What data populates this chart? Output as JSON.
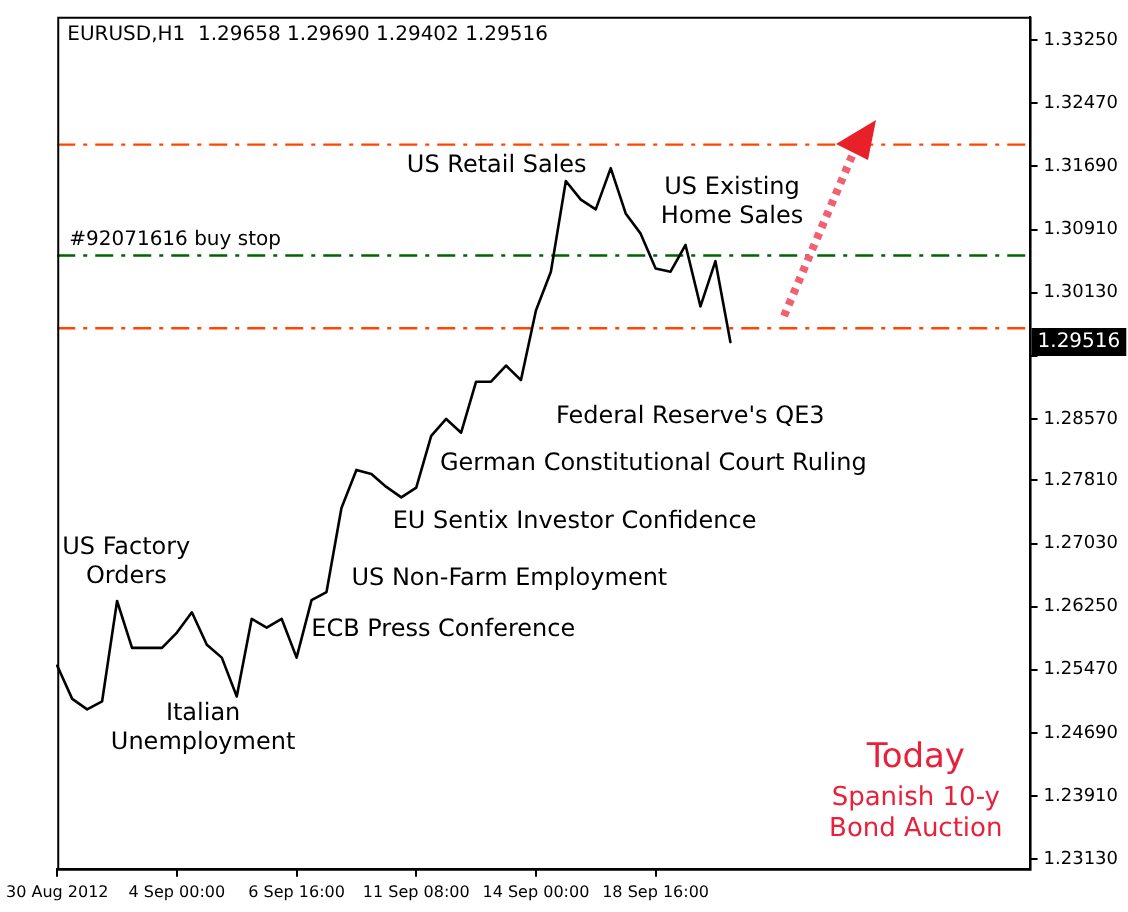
{
  "chart_data": {
    "type": "line",
    "title": "EURUSD,H1  1.29658 1.29690 1.29402 1.29516",
    "categories": [
      "30 Aug 2012",
      null,
      null,
      null,
      null,
      null,
      null,
      null,
      "4 Sep 00:00",
      null,
      null,
      null,
      null,
      null,
      null,
      null,
      "6 Sep 16:00",
      null,
      null,
      null,
      null,
      null,
      null,
      null,
      "11 Sep 08:00",
      null,
      null,
      null,
      null,
      null,
      null,
      null,
      "14 Sep 00:00",
      null,
      null,
      null,
      null,
      null,
      null,
      null,
      "18 Sep 16:00",
      null,
      null,
      null,
      null,
      null,
      null,
      null,
      null,
      null,
      null,
      null,
      null,
      null,
      null,
      null,
      null,
      null,
      null,
      null,
      null,
      null,
      null,
      null,
      null,
      null
    ],
    "series": [
      {
        "color": "#000000",
        "values": [
          1.2552,
          1.2511,
          1.2498,
          1.2508,
          1.2632,
          1.2574,
          1.2574,
          1.2574,
          1.2593,
          1.2618,
          1.2578,
          1.2562,
          1.2514,
          1.261,
          1.2599,
          1.261,
          1.2562,
          1.2633,
          1.2643,
          1.2747,
          1.2794,
          1.2789,
          1.2773,
          1.276,
          1.2772,
          1.2836,
          1.2857,
          1.284,
          1.2903,
          1.2903,
          1.2923,
          1.2905,
          1.2991,
          1.3039,
          1.3151,
          1.3128,
          1.3116,
          1.3167,
          1.3111,
          1.3086,
          1.3043,
          1.3039,
          1.3072,
          1.2996,
          1.3052,
          1.2952,
          null,
          null,
          null,
          null,
          null,
          null,
          null,
          null,
          null,
          null,
          null,
          null,
          null,
          null,
          null,
          null,
          null,
          null,
          null,
          null
        ]
      }
    ],
    "ylim": [
      1.2301,
      1.3354
    ],
    "yticks": [
      {
        "value": 1.2313,
        "label": "1.23130"
      },
      {
        "value": 1.2391,
        "label": "1.23910"
      },
      {
        "value": 1.2469,
        "label": "1.24690"
      },
      {
        "value": 1.2547,
        "label": "1.25470"
      },
      {
        "value": 1.2625,
        "label": "1.26250"
      },
      {
        "value": 1.2703,
        "label": "1.27030"
      },
      {
        "value": 1.2781,
        "label": "1.27810"
      },
      {
        "value": 1.2857,
        "label": "1.28570"
      },
      {
        "value": 1.2935,
        "label": null
      },
      {
        "value": 1.3013,
        "label": "1.30130"
      },
      {
        "value": 1.3091,
        "label": "1.30910"
      },
      {
        "value": 1.3169,
        "label": "1.31690"
      },
      {
        "value": 1.3247,
        "label": "1.32470"
      },
      {
        "value": 1.3325,
        "label": "1.33250"
      }
    ],
    "grid": false,
    "legend": false,
    "marker": "none",
    "ref_lines": [
      {
        "axis": "y",
        "value": 1.3196,
        "label": null,
        "color": "#ff4500",
        "line_style": "dashed"
      },
      {
        "axis": "y",
        "value": 1.3059,
        "label": "#92071616 buy stop",
        "color": "#006400",
        "line_style": "dashed"
      },
      {
        "axis": "y",
        "value": 1.2969,
        "label": null,
        "color": "#ff4500",
        "line_style": "dashed"
      }
    ],
    "annotations": [
      "US Retail Sales",
      "US Existing\nHome Sales",
      "Federal Reserve's QE3",
      "German Constitutional Court Ruling",
      "EU Sentix Investor Confidence",
      "US Non-Farm Employment",
      "ECB Press Conference",
      "US Factory\nOrders",
      "Italian\nUnemployment",
      "1.29516",
      "Today",
      "Spanish 10-y\nBond Auction"
    ]
  }
}
